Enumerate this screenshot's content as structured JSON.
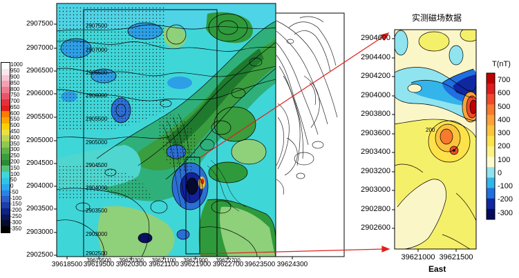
{
  "colors": {
    "accent_red": "#e0201a",
    "cyan": "#3fd6d8",
    "teal": "#22b9a8",
    "green_light": "#8fd07a",
    "green": "#2e9a3c",
    "blue": "#2b6fd6",
    "navy": "#0a1060",
    "yellow": "#f5f06a",
    "cream": "#fbf6c8"
  },
  "left_colorbar": {
    "labels": [
      "1000",
      "950",
      "900",
      "850",
      "800",
      "750",
      "700",
      "650",
      "600",
      "550",
      "500",
      "450",
      "400",
      "350",
      "300",
      "250",
      "200",
      "150",
      "100",
      "50",
      "0",
      "-50",
      "-100",
      "-150",
      "-200",
      "-250",
      "-300",
      "-350"
    ],
    "colors": [
      "#ffffff",
      "#fce6ee",
      "#f7c5d5",
      "#f4a0b3",
      "#ef7a8e",
      "#ea5566",
      "#e5303e",
      "#e0201a",
      "#ff7a00",
      "#ffa500",
      "#ffd000",
      "#e8e04a",
      "#bcd650",
      "#8fc850",
      "#5fb248",
      "#3c9d3c",
      "#2b8a35",
      "#56c07a",
      "#3fd6d8",
      "#2fc4e8",
      "#2aa8ee",
      "#2c82e4",
      "#2c5ec8",
      "#1b3ea8",
      "#0c2380",
      "#081559",
      "#050a2e",
      "#000000"
    ]
  },
  "left_map": {
    "y_ticks": [
      "2907500",
      "2907000",
      "2906500",
      "2906000",
      "2905500",
      "2905000",
      "2904500",
      "2904000",
      "2903500",
      "2903000",
      "2902500"
    ],
    "x_ticks": [
      "39618500",
      "39619500",
      "39620300",
      "39621100",
      "39621900",
      "39622700",
      "39623500",
      "39624300"
    ],
    "inner_y_ticks": [
      "2907500",
      "2907000",
      "2906500",
      "2906000",
      "2905500",
      "2905000",
      "2904500",
      "2904000",
      "2903500",
      "2903000",
      "2902500"
    ],
    "inner_x_ticks": [
      "39619500",
      "39620300",
      "39621100",
      "39621900",
      "39622700"
    ]
  },
  "right_map": {
    "title": "实测磁场数据",
    "y_ticks": [
      "2904600",
      "2904400",
      "2904200",
      "2904000",
      "2903800",
      "2903600",
      "2903400",
      "2903200",
      "2903000",
      "2902800",
      "2902600"
    ],
    "x_ticks": [
      "39621000",
      "39621500"
    ],
    "x_label": "East",
    "contour_label": "200"
  },
  "right_colorbar": {
    "title": "T(nT)",
    "labels": [
      "700",
      "600",
      "500",
      "400",
      "300",
      "200",
      "100",
      "0",
      "-100",
      "-200",
      "-300"
    ],
    "colors": [
      "#c00000",
      "#e01b1b",
      "#f04a2a",
      "#f77a2e",
      "#fca238",
      "#fcc43c",
      "#fde24a",
      "#fbf281",
      "#fffbd0",
      "#8fe4ef",
      "#33b4ea",
      "#1f6fe0",
      "#1027a0",
      "#050a60"
    ]
  }
}
